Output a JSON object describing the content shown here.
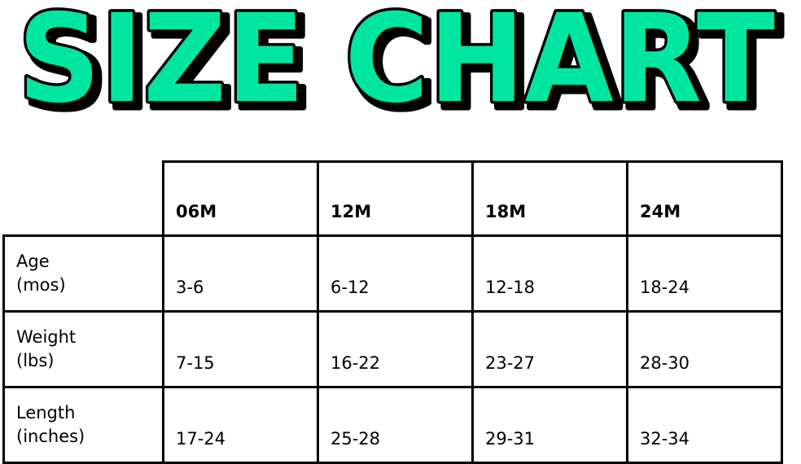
{
  "title": {
    "text": "SIZE CHART",
    "fill_color": "#00E6A0",
    "outline_color": "#000000"
  },
  "table": {
    "columns": [
      "06M",
      "12M",
      "18M",
      "24M"
    ],
    "rows": [
      {
        "label_line1": "Age",
        "label_line2": "(mos)",
        "values": [
          "3-6",
          "6-12",
          "12-18",
          "18-24"
        ]
      },
      {
        "label_line1": "Weight",
        "label_line2": "(lbs)",
        "values": [
          "7-15",
          "16-22",
          "23-27",
          "28-30"
        ]
      },
      {
        "label_line1": "Length",
        "label_line2": "(inches)",
        "values": [
          "17-24",
          "25-28",
          "29-31",
          "32-34"
        ]
      }
    ]
  }
}
